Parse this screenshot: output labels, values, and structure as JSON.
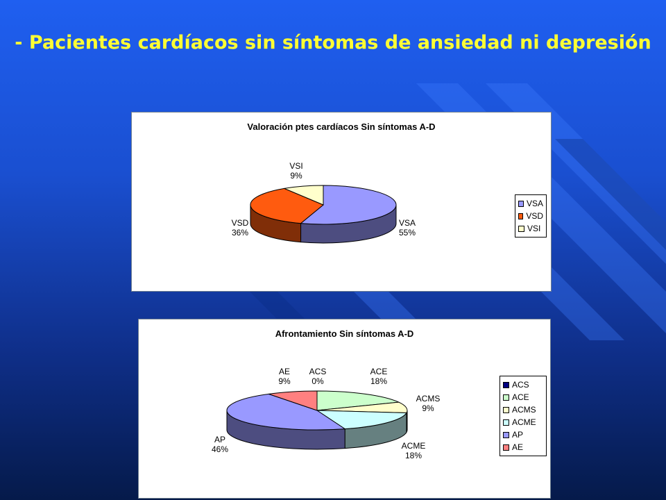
{
  "slide": {
    "title": "- Pacientes cardíacos sin síntomas de ansiedad ni depresión"
  },
  "chart_data": [
    {
      "type": "pie",
      "three_d": true,
      "title": "Valoración ptes cardíacos Sin síntomas A-D",
      "categories": [
        "VSA",
        "VSD",
        "VSI"
      ],
      "values": [
        55,
        36,
        9
      ],
      "unit": "%",
      "data_labels": [
        "VSA\n55%",
        "VSD\n36%",
        "VSI\n9%"
      ],
      "colors": [
        "#9999ff",
        "#ff5b0f",
        "#ffffcc"
      ],
      "legend": "right"
    },
    {
      "type": "pie",
      "three_d": true,
      "title": "Afrontamiento Sin síntomas A-D",
      "categories": [
        "ACS",
        "ACE",
        "ACMS",
        "ACME",
        "AP",
        "AE"
      ],
      "values": [
        0,
        18,
        9,
        18,
        46,
        9
      ],
      "unit": "%",
      "data_labels": [
        "ACS\n0%",
        "ACE\n18%",
        "ACMS\n9%",
        "ACME\n18%",
        "AP\n46%",
        "AE\n9%"
      ],
      "colors": [
        "#000080",
        "#ccffcc",
        "#ffffcc",
        "#ccffff",
        "#9999ff",
        "#ff8080"
      ],
      "legend": "right"
    }
  ]
}
